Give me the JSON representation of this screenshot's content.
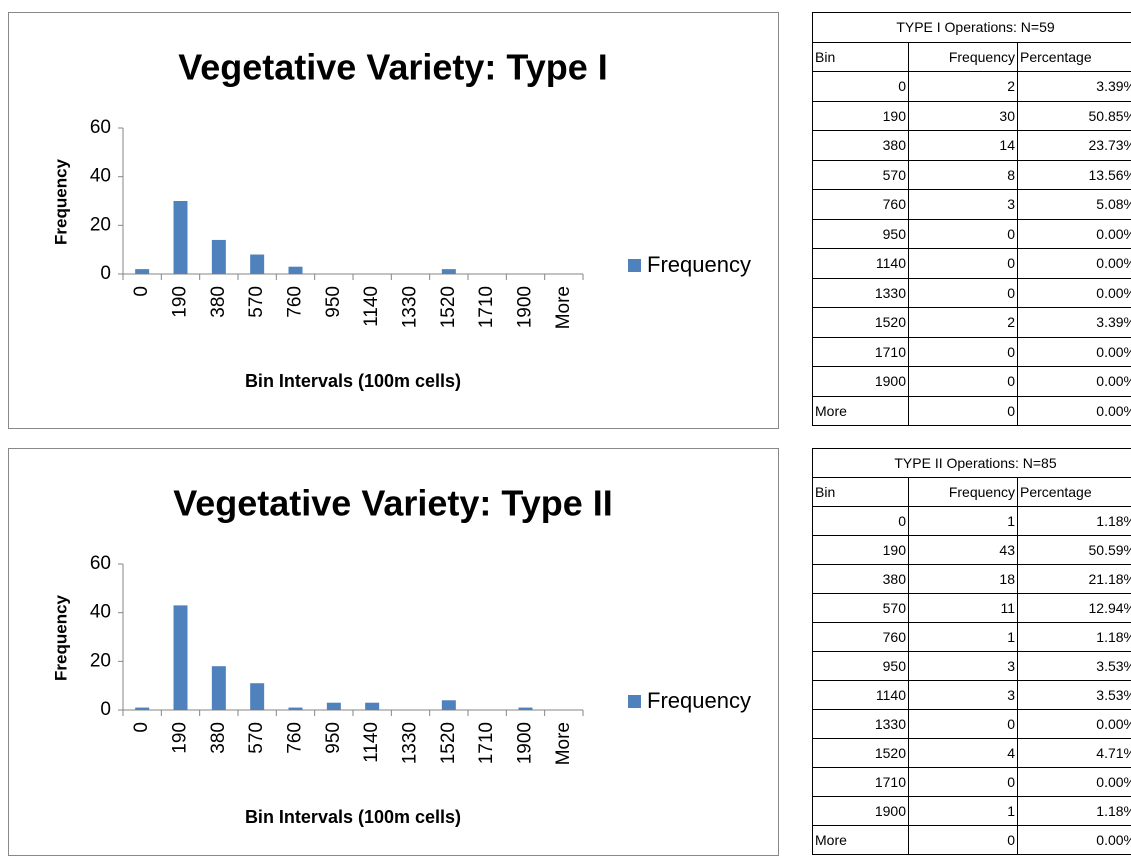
{
  "chart_data": [
    {
      "type": "bar",
      "title": "Vegetative Variety: Type I",
      "x_label": "Bin Intervals (100m cells)",
      "y_label": "Frequency",
      "categories": [
        "0",
        "190",
        "380",
        "570",
        "760",
        "950",
        "1140",
        "1330",
        "1520",
        "1710",
        "1900",
        "More"
      ],
      "series": [
        {
          "name": "Frequency",
          "color": "#4f81bd",
          "values": [
            2,
            30,
            14,
            8,
            3,
            0,
            0,
            0,
            2,
            0,
            0,
            0
          ]
        }
      ],
      "ylim": [
        0,
        60
      ],
      "yticks": [
        0,
        20,
        40,
        60
      ],
      "grid": false,
      "legend": "right"
    },
    {
      "type": "bar",
      "title": "Vegetative Variety: Type II",
      "x_label": "Bin Intervals (100m cells)",
      "y_label": "Frequency",
      "categories": [
        "0",
        "190",
        "380",
        "570",
        "760",
        "950",
        "1140",
        "1330",
        "1520",
        "1710",
        "1900",
        "More"
      ],
      "series": [
        {
          "name": "Frequency",
          "color": "#4f81bd",
          "values": [
            1,
            43,
            18,
            11,
            1,
            3,
            3,
            0,
            4,
            0,
            1,
            0
          ]
        }
      ],
      "ylim": [
        0,
        60
      ],
      "yticks": [
        0,
        20,
        40,
        60
      ],
      "grid": false,
      "legend": "right"
    }
  ],
  "tables": [
    {
      "title": "TYPE I Operations: N=59",
      "header": [
        "Bin",
        "Frequency",
        "Percentage"
      ],
      "rows": [
        [
          "0",
          "2",
          "3.39%"
        ],
        [
          "190",
          "30",
          "50.85%"
        ],
        [
          "380",
          "14",
          "23.73%"
        ],
        [
          "570",
          "8",
          "13.56%"
        ],
        [
          "760",
          "3",
          "5.08%"
        ],
        [
          "950",
          "0",
          "0.00%"
        ],
        [
          "1140",
          "0",
          "0.00%"
        ],
        [
          "1330",
          "0",
          "0.00%"
        ],
        [
          "1520",
          "2",
          "3.39%"
        ],
        [
          "1710",
          "0",
          "0.00%"
        ],
        [
          "1900",
          "0",
          "0.00%"
        ],
        [
          "More",
          "0",
          "0.00%"
        ]
      ]
    },
    {
      "title": "TYPE II Operations: N=85",
      "header": [
        "Bin",
        "Frequency",
        "Percentage"
      ],
      "rows": [
        [
          "0",
          "1",
          "1.18%"
        ],
        [
          "190",
          "43",
          "50.59%"
        ],
        [
          "380",
          "18",
          "21.18%"
        ],
        [
          "570",
          "11",
          "12.94%"
        ],
        [
          "760",
          "1",
          "1.18%"
        ],
        [
          "950",
          "3",
          "3.53%"
        ],
        [
          "1140",
          "3",
          "3.53%"
        ],
        [
          "1330",
          "0",
          "0.00%"
        ],
        [
          "1520",
          "4",
          "4.71%"
        ],
        [
          "1710",
          "0",
          "0.00%"
        ],
        [
          "1900",
          "1",
          "1.18%"
        ],
        [
          "More",
          "0",
          "0.00%"
        ]
      ]
    }
  ]
}
